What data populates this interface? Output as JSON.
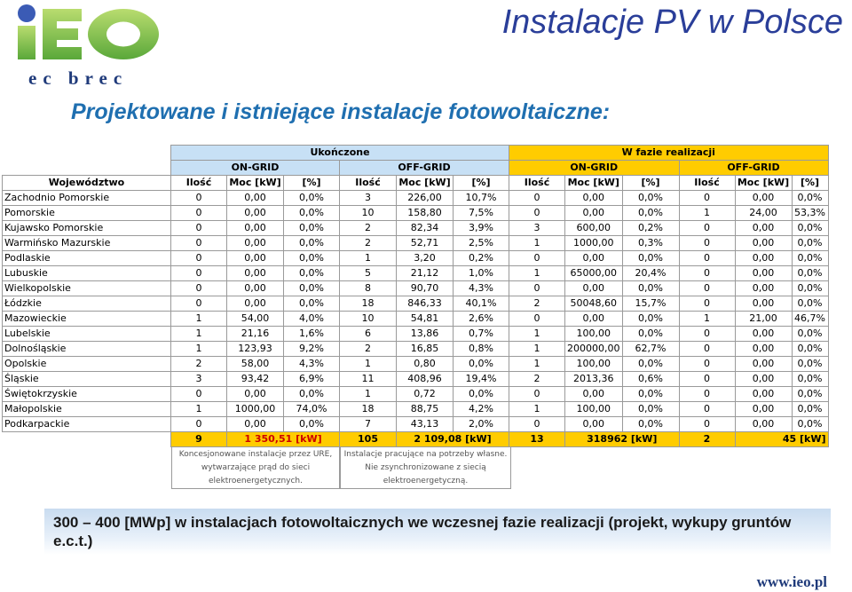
{
  "logo": {
    "word": "iEO",
    "sub": "ec brec"
  },
  "title": "Instalacje PV w Polsce",
  "subtitle": "Projektowane i istniejące instalacje fotowoltaiczne:",
  "table": {
    "group_completed": "Ukończone",
    "group_in_progress": "W fazie realizacji",
    "on_grid": "ON-GRID",
    "off_grid": "OFF-GRID",
    "col_region": "Województwo",
    "col_count": "Ilość",
    "col_power": "Moc [kW]",
    "col_pct": "[%]",
    "rows": [
      {
        "name": "Zachodnio Pomorskie",
        "v": [
          "0",
          "0,00",
          "0,0%",
          "3",
          "226,00",
          "10,7%",
          "0",
          "0,00",
          "0,0%",
          "0",
          "0,00",
          "0,0%"
        ]
      },
      {
        "name": "Pomorskie",
        "v": [
          "0",
          "0,00",
          "0,0%",
          "10",
          "158,80",
          "7,5%",
          "0",
          "0,00",
          "0,0%",
          "1",
          "24,00",
          "53,3%"
        ]
      },
      {
        "name": "Kujawsko Pomorskie",
        "v": [
          "0",
          "0,00",
          "0,0%",
          "2",
          "82,34",
          "3,9%",
          "3",
          "600,00",
          "0,2%",
          "0",
          "0,00",
          "0,0%"
        ]
      },
      {
        "name": "Warmińsko Mazurskie",
        "v": [
          "0",
          "0,00",
          "0,0%",
          "2",
          "52,71",
          "2,5%",
          "1",
          "1000,00",
          "0,3%",
          "0",
          "0,00",
          "0,0%"
        ]
      },
      {
        "name": "Podlaskie",
        "v": [
          "0",
          "0,00",
          "0,0%",
          "1",
          "3,20",
          "0,2%",
          "0",
          "0,00",
          "0,0%",
          "0",
          "0,00",
          "0,0%"
        ]
      },
      {
        "name": "Lubuskie",
        "v": [
          "0",
          "0,00",
          "0,0%",
          "5",
          "21,12",
          "1,0%",
          "1",
          "65000,00",
          "20,4%",
          "0",
          "0,00",
          "0,0%"
        ]
      },
      {
        "name": "Wielkopolskie",
        "v": [
          "0",
          "0,00",
          "0,0%",
          "8",
          "90,70",
          "4,3%",
          "0",
          "0,00",
          "0,0%",
          "0",
          "0,00",
          "0,0%"
        ]
      },
      {
        "name": "Łódzkie",
        "v": [
          "0",
          "0,00",
          "0,0%",
          "18",
          "846,33",
          "40,1%",
          "2",
          "50048,60",
          "15,7%",
          "0",
          "0,00",
          "0,0%"
        ]
      },
      {
        "name": "Mazowieckie",
        "v": [
          "1",
          "54,00",
          "4,0%",
          "10",
          "54,81",
          "2,6%",
          "0",
          "0,00",
          "0,0%",
          "1",
          "21,00",
          "46,7%"
        ]
      },
      {
        "name": "Lubelskie",
        "v": [
          "1",
          "21,16",
          "1,6%",
          "6",
          "13,86",
          "0,7%",
          "1",
          "100,00",
          "0,0%",
          "0",
          "0,00",
          "0,0%"
        ]
      },
      {
        "name": "Dolnośląskie",
        "v": [
          "1",
          "123,93",
          "9,2%",
          "2",
          "16,85",
          "0,8%",
          "1",
          "200000,00",
          "62,7%",
          "0",
          "0,00",
          "0,0%"
        ]
      },
      {
        "name": "Opolskie",
        "v": [
          "2",
          "58,00",
          "4,3%",
          "1",
          "0,80",
          "0,0%",
          "1",
          "100,00",
          "0,0%",
          "0",
          "0,00",
          "0,0%"
        ]
      },
      {
        "name": "Śląskie",
        "v": [
          "3",
          "93,42",
          "6,9%",
          "11",
          "408,96",
          "19,4%",
          "2",
          "2013,36",
          "0,6%",
          "0",
          "0,00",
          "0,0%"
        ]
      },
      {
        "name": "Świętokrzyskie",
        "v": [
          "0",
          "0,00",
          "0,0%",
          "1",
          "0,72",
          "0,0%",
          "0",
          "0,00",
          "0,0%",
          "0",
          "0,00",
          "0,0%"
        ]
      },
      {
        "name": "Małopolskie",
        "v": [
          "1",
          "1000,00",
          "74,0%",
          "18",
          "88,75",
          "4,2%",
          "1",
          "100,00",
          "0,0%",
          "0",
          "0,00",
          "0,0%"
        ]
      },
      {
        "name": "Podkarpackie",
        "v": [
          "0",
          "0,00",
          "0,0%",
          "7",
          "43,13",
          "2,0%",
          "0",
          "0,00",
          "0,0%",
          "0",
          "0,00",
          "0,0%"
        ]
      }
    ],
    "totals": {
      "c1_count": "9",
      "c1_power": "1 350,51  [kW]",
      "c2_count": "105",
      "c2_power": "2 109,08  [kW]",
      "c3_count": "13",
      "c3_power": "318962  [kW]",
      "c4_count": "2",
      "c4_power": "45  [kW]"
    },
    "note_on_grid": "Koncesjonowane instalacje przez URE, wytwarzające prąd do sieci elektroenergetycznych.",
    "note_off_grid": "Instalacje pracujące na potrzeby własne. Nie zsynchronizowane z siecią elektroenergetyczną."
  },
  "banner": "300 – 400 [MWp] w instalacjach fotowoltaicznych we wczesnej fazie realizacji (projekt, wykupy gruntów e.c.t.)",
  "url": "www.ieo.pl",
  "colors": {
    "header_blue": "#c7e0f5",
    "header_yellow": "#ffcc00",
    "title": "#2a3e99",
    "subtitle": "#1f6fb0",
    "red": "#cc0000"
  }
}
